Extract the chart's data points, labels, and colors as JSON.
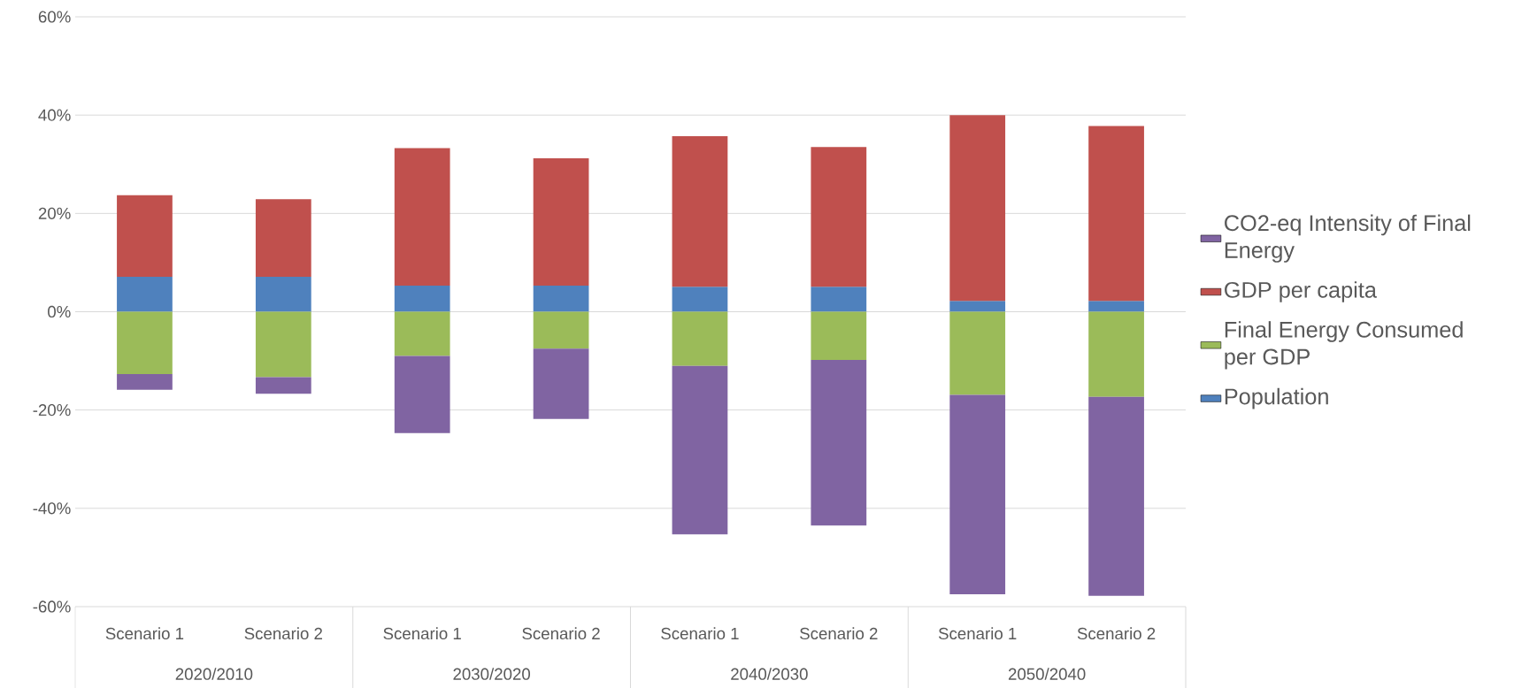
{
  "chart_data": {
    "type": "bar",
    "stacked": true,
    "categories": [
      "Scenario 1",
      "Scenario 2",
      "Scenario 1",
      "Scenario 2",
      "Scenario 1",
      "Scenario 2",
      "Scenario 1",
      "Scenario 2"
    ],
    "annotations": [
      "2020/2010",
      "2030/2020",
      "2040/2030",
      "2050/2040"
    ],
    "series": [
      {
        "name": "Population",
        "color": "#4f81bd",
        "values": [
          7.1,
          7.1,
          5.3,
          5.3,
          5.1,
          5.1,
          2.2,
          2.2
        ]
      },
      {
        "name": "Final Energy Consumed per GDP",
        "color": "#9bbb59",
        "values": [
          -12.7,
          -13.3,
          -9.0,
          -7.5,
          -11.0,
          -9.8,
          -16.9,
          -17.3
        ]
      },
      {
        "name": "GDP per capita",
        "color": "#c0504d",
        "values": [
          16.6,
          15.8,
          28.0,
          25.9,
          30.6,
          28.4,
          37.8,
          35.6
        ]
      },
      {
        "name": "CO2-eq Intensity of Final Energy",
        "color": "#8064a2",
        "values": [
          -3.2,
          -3.4,
          -15.7,
          -14.3,
          -34.3,
          -33.7,
          -40.6,
          -40.5
        ]
      }
    ],
    "ylim": [
      -60,
      60
    ],
    "yticks": [
      {
        "value": -60,
        "label": "-60%"
      },
      {
        "value": -40,
        "label": "-40%"
      },
      {
        "value": -20,
        "label": "-20%"
      },
      {
        "value": 0,
        "label": "0%"
      },
      {
        "value": 20,
        "label": "20%"
      },
      {
        "value": 40,
        "label": "40%"
      },
      {
        "value": 60,
        "label": "60%"
      }
    ],
    "grid": "y",
    "legend": "right"
  }
}
